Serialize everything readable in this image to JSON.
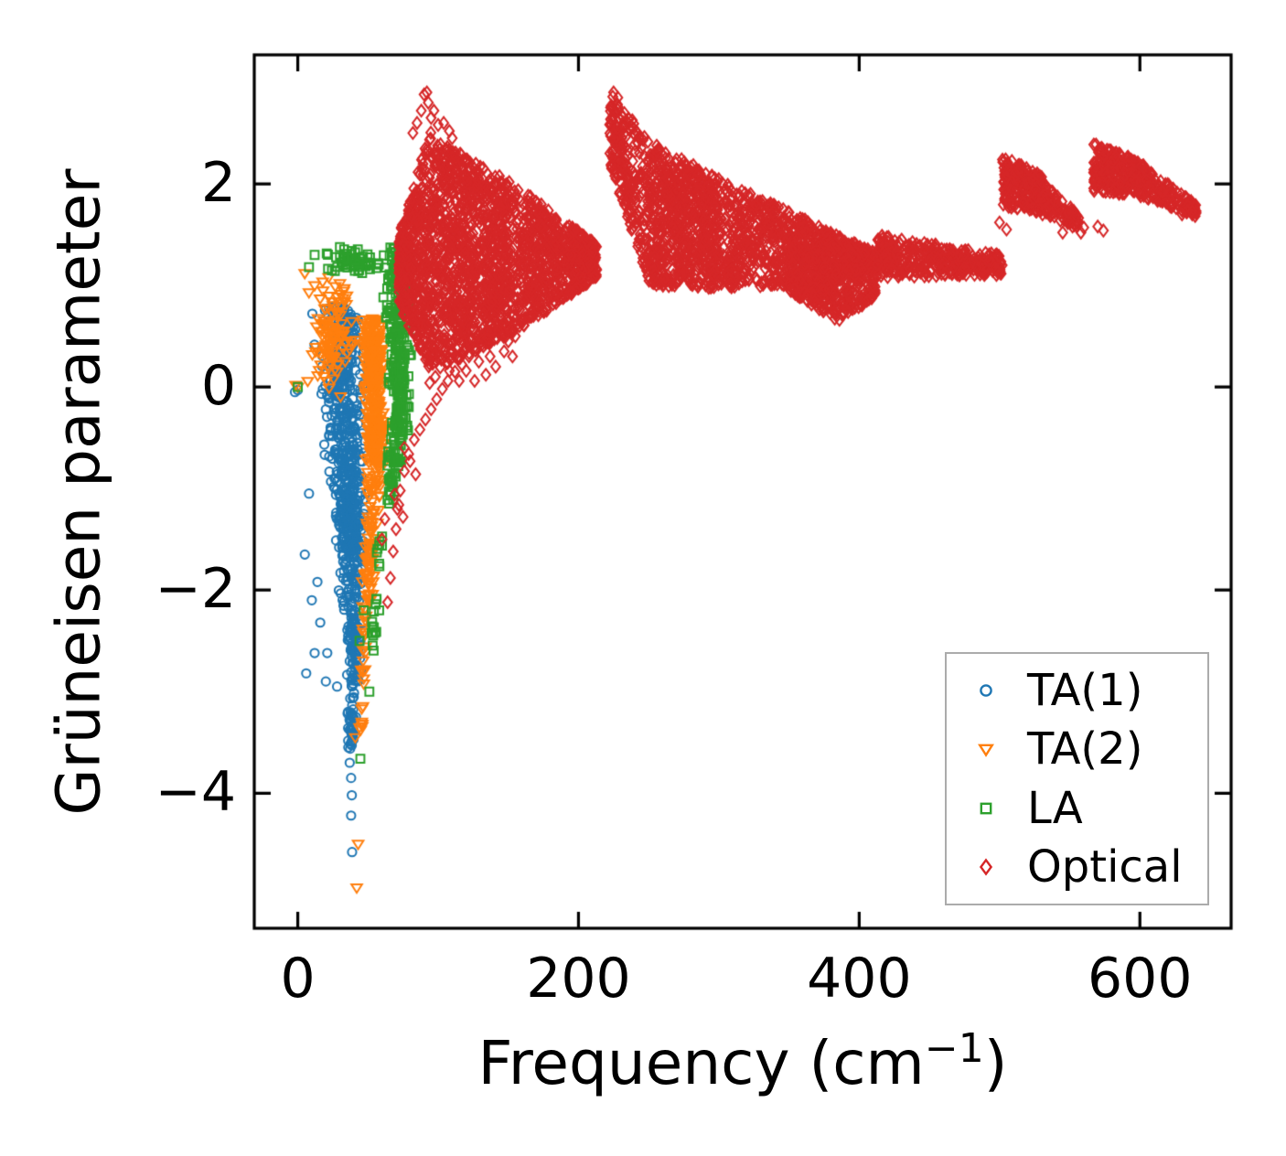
{
  "figure": {
    "background": "#ffffff",
    "spine_color": "#000000"
  },
  "chart_data": {
    "type": "scatter",
    "title": "",
    "xlabel": {
      "prefix": "Frequency (cm",
      "sup": "−1",
      "suffix": ")"
    },
    "ylabel": "Grüneisen parameter",
    "xlim": [
      -31,
      665
    ],
    "ylim": [
      -5.33,
      3.27
    ],
    "xticks": [
      0,
      200,
      400,
      600
    ],
    "yticks": [
      2,
      0,
      -2,
      -4
    ],
    "grid": false,
    "legend_position": "lower right",
    "series": [
      {
        "name": "TA(1)",
        "marker": "circle",
        "color": "#1f77b4",
        "clusters": [
          {
            "t": "vband",
            "y0": 0.8,
            "y1": -0.4,
            "c0": 30,
            "c1": 34,
            "w0": 22,
            "w1": 20,
            "n": 240
          },
          {
            "t": "vband",
            "y0": -0.4,
            "y1": -1.6,
            "c0": 34,
            "c1": 38,
            "w0": 20,
            "w1": 13,
            "n": 300
          },
          {
            "t": "vband",
            "y0": -1.6,
            "y1": -2.75,
            "c0": 38,
            "c1": 40,
            "w0": 13,
            "w1": 7,
            "n": 150
          },
          {
            "t": "vband",
            "y0": -2.75,
            "y1": -3.6,
            "c0": 40,
            "c1": 38,
            "w0": 7,
            "w1": 2.5,
            "n": 55
          }
        ],
        "points": [
          [
            0,
            -0.03
          ],
          [
            -2,
            -0.05
          ],
          [
            37,
            -3.7
          ],
          [
            38,
            -3.85
          ],
          [
            38.5,
            -4.02
          ],
          [
            38,
            -4.22
          ],
          [
            38.7,
            -4.58
          ],
          [
            36,
            -3.55
          ],
          [
            8,
            -1.05
          ],
          [
            5,
            -1.65
          ],
          [
            10,
            -2.1
          ],
          [
            12,
            -2.62
          ],
          [
            6,
            -2.82
          ],
          [
            20,
            -2.9
          ],
          [
            16,
            -2.32
          ],
          [
            14,
            -1.92
          ],
          [
            25,
            0.72
          ],
          [
            33,
            0.78
          ],
          [
            21,
            -2.62
          ],
          [
            28,
            -2.95
          ]
        ]
      },
      {
        "name": "TA(2)",
        "marker": "triangle-down",
        "color": "#ff7f0e",
        "clusters": [
          {
            "t": "gauss",
            "cx": 24,
            "cy": 0.5,
            "sx": 11,
            "sy": 0.38,
            "n": 110
          },
          {
            "t": "vband",
            "y0": 0.68,
            "y1": -0.75,
            "c0": 53,
            "c1": 56,
            "w0": 11,
            "w1": 9,
            "n": 330
          },
          {
            "t": "vband",
            "y0": -0.75,
            "y1": -2.1,
            "c0": 56,
            "c1": 50,
            "w0": 9,
            "w1": 5,
            "n": 100
          },
          {
            "t": "vband",
            "y0": -2.1,
            "y1": -3.4,
            "c0": 48,
            "c1": 45,
            "w0": 4,
            "w1": 1.5,
            "n": 26
          }
        ],
        "points": [
          [
            0,
            0
          ],
          [
            -1.5,
            0.02
          ],
          [
            43,
            -4.5
          ],
          [
            42,
            -4.93
          ],
          [
            41,
            -3.45
          ],
          [
            44,
            -3.35
          ],
          [
            22,
            1.08
          ],
          [
            30,
            1.02
          ],
          [
            12,
            1.0
          ],
          [
            8,
            0.93
          ],
          [
            35,
            0.9
          ],
          [
            5,
            1.12
          ],
          [
            18,
            0.95
          ]
        ]
      },
      {
        "name": "LA",
        "marker": "square",
        "color": "#2ca02c",
        "clusters": [
          {
            "t": "gauss",
            "cx": 38,
            "cy": 1.24,
            "sx": 15,
            "sy": 0.1,
            "n": 60
          },
          {
            "t": "vband",
            "y0": 1.38,
            "y1": -0.5,
            "c0": 70,
            "c1": 73,
            "w0": 13,
            "w1": 9,
            "n": 280
          },
          {
            "t": "vband",
            "y0": -0.5,
            "y1": -1.15,
            "c0": 70,
            "c1": 64,
            "w0": 9,
            "w1": 5,
            "n": 55
          },
          {
            "t": "vband",
            "y0": -1.15,
            "y1": -2.6,
            "c0": 60,
            "c1": 53,
            "w0": 4,
            "w1": 2,
            "n": 20
          }
        ],
        "points": [
          [
            0,
            0
          ],
          [
            44.6,
            -3.66
          ],
          [
            51,
            -3.0
          ],
          [
            47,
            -2.2
          ],
          [
            44,
            -2.5
          ],
          [
            55,
            -2.42
          ],
          [
            58,
            -2.2
          ],
          [
            12,
            1.3
          ],
          [
            8,
            1.18
          ]
        ]
      },
      {
        "name": "Optical",
        "marker": "diamond",
        "color": "#d62728",
        "clusters": [
          {
            "t": "trap",
            "x0": 72,
            "x1": 95,
            "t0": 1.5,
            "t1": 2.55,
            "b0": 0.8,
            "b1": 0.15,
            "n": 420
          },
          {
            "t": "trap",
            "x0": 95,
            "x1": 150,
            "t0": 2.45,
            "t1": 2.05,
            "b0": 0.15,
            "b1": 0.5,
            "n": 950
          },
          {
            "t": "trap",
            "x0": 150,
            "x1": 213,
            "t0": 2.05,
            "t1": 1.4,
            "b0": 0.5,
            "b1": 1.08,
            "n": 640
          },
          {
            "t": "trap",
            "x0": 222,
            "x1": 250,
            "t0": 2.92,
            "t1": 2.42,
            "b0": 2.2,
            "b1": 1.05,
            "n": 230
          },
          {
            "t": "trap",
            "x0": 250,
            "x1": 300,
            "t0": 2.42,
            "t1": 2.05,
            "b0": 1.0,
            "b1": 0.97,
            "n": 620
          },
          {
            "t": "trap",
            "x0": 300,
            "x1": 412,
            "t0": 2.05,
            "t1": 1.32,
            "b0": 0.97,
            "b1": 1.05,
            "n": 900
          },
          {
            "t": "trap",
            "x0": 412,
            "x1": 502,
            "t0": 1.5,
            "t1": 1.3,
            "b0": 1.08,
            "b1": 1.1,
            "n": 400
          },
          {
            "t": "trap",
            "x0": 350,
            "x1": 386,
            "t0": 1.05,
            "t1": 1.0,
            "b0": 0.95,
            "b1": 0.64,
            "n": 120
          },
          {
            "t": "trap",
            "x0": 386,
            "x1": 412,
            "t0": 1.0,
            "t1": 1.02,
            "b0": 0.64,
            "b1": 0.9,
            "n": 80
          },
          {
            "t": "trap",
            "x0": 502,
            "x1": 530,
            "t0": 2.28,
            "t1": 2.08,
            "b0": 1.78,
            "b1": 1.72,
            "n": 230
          },
          {
            "t": "trap",
            "x0": 530,
            "x1": 557,
            "t0": 2.05,
            "t1": 1.68,
            "b0": 1.7,
            "b1": 1.56,
            "n": 90
          },
          {
            "t": "trap",
            "x0": 567,
            "x1": 603,
            "t0": 2.42,
            "t1": 2.2,
            "b0": 1.92,
            "b1": 1.88,
            "n": 260
          },
          {
            "t": "trap",
            "x0": 600,
            "x1": 640,
            "t0": 2.2,
            "t1": 1.8,
            "b0": 1.88,
            "b1": 1.68,
            "n": 140
          }
        ],
        "points": [
          [
            88,
            2.72
          ],
          [
            90,
            2.88
          ],
          [
            92,
            2.9
          ],
          [
            93,
            2.8
          ],
          [
            95,
            2.65
          ],
          [
            85,
            2.6
          ],
          [
            97,
            2.72
          ],
          [
            100,
            2.58
          ],
          [
            104,
            2.6
          ],
          [
            108,
            2.52
          ],
          [
            110,
            2.45
          ],
          [
            82,
            2.5
          ],
          [
            64,
            -2.12
          ],
          [
            66,
            -1.88
          ],
          [
            68,
            -1.62
          ],
          [
            70,
            -1.4
          ],
          [
            71,
            -1.2
          ],
          [
            73,
            -1.02
          ],
          [
            76,
            -0.83
          ],
          [
            79,
            -0.66
          ],
          [
            83,
            -0.52
          ],
          [
            87,
            -0.42
          ],
          [
            91,
            -0.32
          ],
          [
            95,
            -0.22
          ],
          [
            99,
            -0.12
          ],
          [
            103,
            -0.02
          ],
          [
            107,
            0.06
          ],
          [
            112,
            0.15
          ],
          [
            117,
            0.22
          ],
          [
            122,
            0.3
          ],
          [
            128,
            0.37
          ],
          [
            134,
            0.43
          ],
          [
            140,
            0.47
          ],
          [
            146,
            0.51
          ],
          [
            152,
            0.55
          ],
          [
            76,
            -0.6
          ],
          [
            80,
            -0.73
          ],
          [
            84,
            -0.86
          ],
          [
            69,
            -1.06
          ],
          [
            72,
            -1.16
          ],
          [
            75,
            -1.28
          ],
          [
            60,
            -1.5
          ],
          [
            62,
            -1.3
          ],
          [
            105,
            0.3
          ],
          [
            110,
            0.42
          ],
          [
            115,
            0.06
          ],
          [
            118,
            0.35
          ],
          [
            120,
            0.16
          ],
          [
            123,
            0.45
          ],
          [
            126,
            0.06
          ],
          [
            129,
            0.25
          ],
          [
            131,
            0.5
          ],
          [
            134,
            0.12
          ],
          [
            137,
            0.3
          ],
          [
            141,
            0.2
          ],
          [
            143,
            0.55
          ],
          [
            147,
            0.35
          ],
          [
            150,
            0.45
          ],
          [
            153,
            0.3
          ],
          [
            155,
            0.5
          ],
          [
            98,
            0.1
          ],
          [
            94,
            0.04
          ],
          [
            125,
            0.38
          ],
          [
            135,
            0.48
          ],
          [
            116,
            0.5
          ],
          [
            108,
            0.16
          ],
          [
            150,
            0.58
          ],
          [
            158,
            0.6
          ],
          [
            162,
            0.68
          ],
          [
            228,
            2.85
          ],
          [
            225,
            2.9
          ],
          [
            545,
            1.52
          ],
          [
            552,
            1.58
          ],
          [
            558,
            1.52
          ],
          [
            560,
            1.57
          ],
          [
            500,
            1.62
          ],
          [
            505,
            1.55
          ],
          [
            570,
            1.58
          ],
          [
            574,
            1.54
          ],
          [
            637,
            1.73
          ],
          [
            630,
            1.7
          ]
        ]
      }
    ]
  }
}
